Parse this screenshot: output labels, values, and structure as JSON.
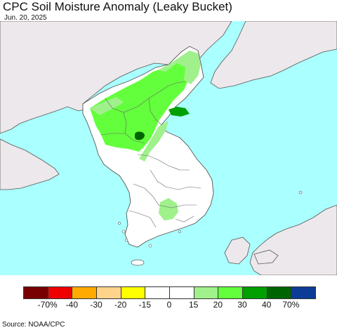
{
  "title": "CPC Soil Moisture Anomaly (Leaky Bucket)",
  "date": "Jun. 20, 2025",
  "source": "Source: NOAA/CPC",
  "colors": {
    "ocean": "#aaffff",
    "land": "#ede8ec",
    "korea": "#ffffff",
    "border": "#555555"
  },
  "legend": {
    "colors": [
      "#780000",
      "#ee0000",
      "#ffaa00",
      "#ffd38a",
      "#ffff00",
      "#ffffff",
      "#ffffff",
      "#a0f08c",
      "#64ff3c",
      "#00a000",
      "#006400",
      "#0c3c96"
    ],
    "ticks": [
      "-70%",
      "-40",
      "-30",
      "-20",
      "-15",
      "0",
      "15",
      "20",
      "30",
      "40",
      "70%"
    ]
  }
}
